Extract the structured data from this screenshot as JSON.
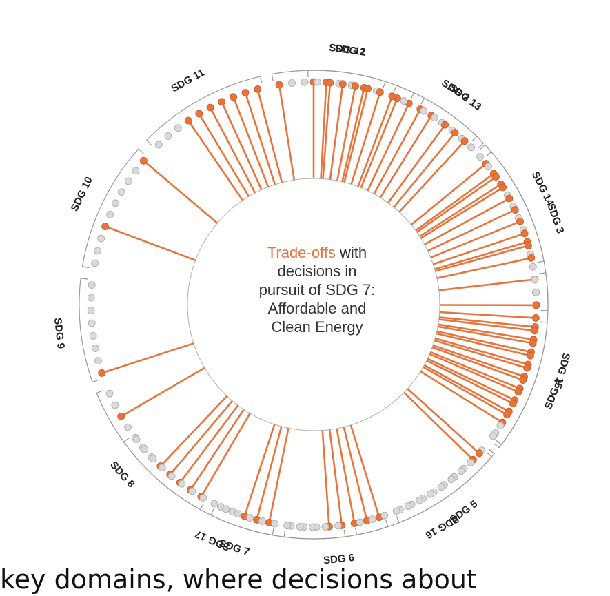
{
  "center": {
    "highlight": "Trade-offs",
    "line1_rest": " with",
    "line2": "decisions in",
    "line3": "pursuit of SDG 7:",
    "line4": "Affordable and",
    "line5": "Clean Energy"
  },
  "caption": "key domains, where decisions about",
  "colors": {
    "tradeoff": "#e8743b",
    "inactive": "#d9d9d9",
    "bracket": "#999999"
  },
  "groups": [
    {
      "label": "SDG 1",
      "targets": [
        1,
        1,
        0,
        0,
        1,
        0
      ]
    },
    {
      "label": "SDG 2",
      "targets": [
        1,
        1,
        1,
        1,
        0,
        0,
        0,
        0
      ]
    },
    {
      "label": "SDG 3",
      "targets": [
        1,
        1,
        1,
        0,
        0,
        0,
        0,
        1,
        0,
        0,
        1,
        0,
        0
      ]
    },
    {
      "label": "SDG 4",
      "targets": [
        1,
        1,
        1,
        1,
        1,
        1,
        1,
        1,
        1,
        0
      ]
    },
    {
      "label": "SDG 5",
      "targets": [
        0,
        1,
        0,
        0,
        0,
        0,
        0,
        0,
        0
      ]
    },
    {
      "label": "SDG 6",
      "targets": [
        1,
        1,
        1,
        1,
        1,
        0,
        0,
        0
      ]
    },
    {
      "label": "SDG 7",
      "targets": [
        1,
        1,
        1,
        0,
        0
      ]
    },
    {
      "label": "SDG 8",
      "targets": [
        1,
        1,
        1,
        1,
        1,
        0,
        0,
        0,
        0,
        1,
        0,
        0
      ]
    },
    {
      "label": "SDG 9",
      "targets": [
        1,
        0,
        0,
        0,
        0,
        0,
        0,
        0
      ]
    },
    {
      "label": "SDG 10",
      "targets": [
        0,
        0,
        0,
        1,
        0,
        0,
        0,
        0,
        0,
        1
      ]
    },
    {
      "label": "SDG 11",
      "targets": [
        0,
        0,
        0,
        1,
        1,
        1,
        1,
        1,
        1,
        1
      ]
    },
    {
      "label": "SDG 12",
      "targets": [
        1,
        0,
        0,
        0,
        1,
        1,
        1,
        1,
        1,
        1,
        0
      ]
    },
    {
      "label": "SDG 13",
      "targets": [
        0,
        0,
        1,
        1,
        1
      ]
    },
    {
      "label": "SDG 14",
      "targets": [
        0,
        0,
        1,
        1,
        1,
        1,
        1,
        1,
        1,
        1
      ]
    },
    {
      "label": "SDG 15",
      "targets": [
        0,
        0,
        1,
        1,
        1,
        1,
        1,
        1,
        1,
        1,
        1,
        1,
        0,
        0
      ]
    },
    {
      "label": "SDG 16",
      "targets": [
        1,
        0,
        0,
        0,
        0,
        0,
        0,
        0,
        0,
        0,
        0,
        0
      ]
    },
    {
      "label": "SDG 17",
      "targets": [
        0,
        0,
        0,
        0,
        0,
        0,
        0,
        0,
        0,
        0,
        0,
        0,
        0,
        0,
        0,
        0,
        0,
        0,
        0
      ]
    }
  ]
}
